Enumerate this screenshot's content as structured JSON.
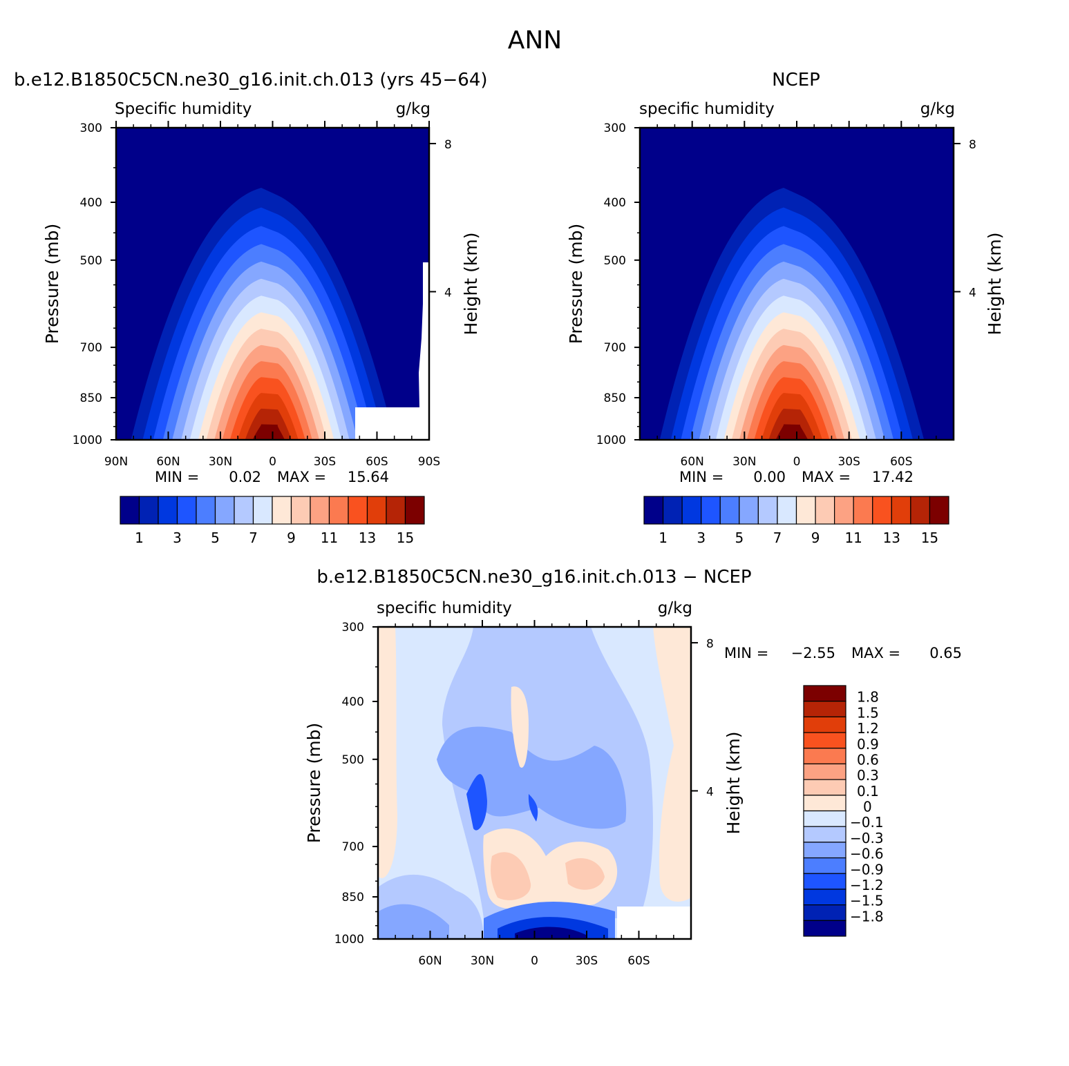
{
  "figure": {
    "title": "ANN"
  },
  "colors": {
    "abs_scale": [
      "#00008a",
      "#0022b4",
      "#0038e0",
      "#1e55ff",
      "#4c7eff",
      "#85a7ff",
      "#b4c9ff",
      "#d9e8ff",
      "#fee8d7",
      "#fdcbb4",
      "#fca283",
      "#fb7a50",
      "#f9521f",
      "#e13e0a",
      "#b52406",
      "#7c0000"
    ],
    "diff_scale": [
      "#00008a",
      "#0022b4",
      "#0038e0",
      "#1e55ff",
      "#4c7eff",
      "#85a7ff",
      "#b4c9ff",
      "#d9e8ff",
      "#fee8d7",
      "#fdcbb4",
      "#fca283",
      "#fb7a50",
      "#f9521f",
      "#e13e0a",
      "#b52406",
      "#7c0000"
    ]
  },
  "chart_data": [
    {
      "type": "contour",
      "panel_title": "b.e12.B1850C5CN.ne30_g16.init.ch.013 (yrs 45−64)",
      "left_label": "Specific humidity",
      "right_label": "g/kg",
      "ylabel": "Pressure (mb)",
      "ylabel_right": "Height (km)",
      "y_ticks": [
        "300",
        "400",
        "500",
        "700",
        "850",
        "1000"
      ],
      "y_ticks_right": [
        "8",
        "4"
      ],
      "x_ticks": [
        "90N",
        "60N",
        "30N",
        "0",
        "30S",
        "60S",
        "90S"
      ],
      "min_label": "MIN =",
      "min_value": "0.02",
      "max_label": "MAX =",
      "max_value": "15.64",
      "levels": [
        1,
        2,
        3,
        4,
        5,
        6,
        7,
        8,
        9,
        10,
        11,
        12,
        13,
        14,
        15
      ],
      "colorbar_labels": [
        "1",
        "3",
        "5",
        "7",
        "9",
        "11",
        "13",
        "15"
      ],
      "ylim": [
        1000,
        300
      ],
      "xlim": [
        "90N",
        "90S"
      ]
    },
    {
      "type": "contour",
      "panel_title": "NCEP",
      "left_label": "specific humidity",
      "right_label": "g/kg",
      "ylabel": "Pressure (mb)",
      "ylabel_right": "Height (km)",
      "y_ticks": [
        "300",
        "400",
        "500",
        "700",
        "850",
        "1000"
      ],
      "y_ticks_right": [
        "8",
        "4"
      ],
      "x_ticks": [
        "60N",
        "30N",
        "0",
        "30S",
        "60S"
      ],
      "min_label": "MIN =",
      "min_value": "0.00",
      "max_label": "MAX =",
      "max_value": "17.42",
      "levels": [
        1,
        2,
        3,
        4,
        5,
        6,
        7,
        8,
        9,
        10,
        11,
        12,
        13,
        14,
        15
      ],
      "colorbar_labels": [
        "1",
        "3",
        "5",
        "7",
        "9",
        "11",
        "13",
        "15"
      ],
      "ylim": [
        1000,
        300
      ]
    },
    {
      "type": "contour",
      "panel_title": "b.e12.B1850C5CN.ne30_g16.init.ch.013 − NCEP",
      "left_label": "specific humidity",
      "right_label": "g/kg",
      "ylabel": "Pressure (mb)",
      "ylabel_right": "Height (km)",
      "y_ticks": [
        "300",
        "400",
        "500",
        "700",
        "850",
        "1000"
      ],
      "y_ticks_right": [
        "8",
        "4"
      ],
      "x_ticks": [
        "60N",
        "30N",
        "0",
        "30S",
        "60S"
      ],
      "min_label": "MIN =",
      "min_value": "−2.55",
      "max_label": "MAX =",
      "max_value": "0.65",
      "levels": [
        -1.8,
        -1.5,
        -1.2,
        -0.9,
        -0.6,
        -0.3,
        -0.1,
        0,
        0.1,
        0.3,
        0.6,
        0.9,
        1.2,
        1.5,
        1.8
      ],
      "colorbar_labels": [
        "1.8",
        "1.5",
        "1.2",
        "0.9",
        "0.6",
        "0.3",
        "0.1",
        "0",
        "−0.1",
        "−0.3",
        "−0.6",
        "−0.9",
        "−1.2",
        "−1.5",
        "−1.8"
      ],
      "ylim": [
        1000,
        300
      ]
    }
  ]
}
